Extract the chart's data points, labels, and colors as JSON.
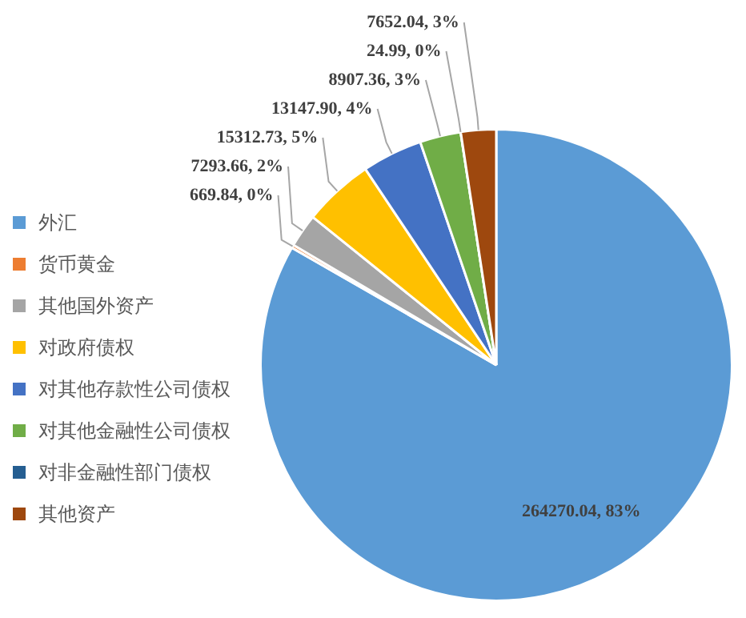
{
  "chart_data": {
    "type": "pie",
    "categories": [
      "外汇",
      "货币黄金",
      "其他国外资产",
      "对政府债权",
      "对其他存款性公司债权",
      "对其他金融性公司债权",
      "对非金融性部门债权",
      "其他资产"
    ],
    "values": [
      264270.04,
      669.84,
      7293.66,
      15312.73,
      13147.9,
      8907.36,
      24.99,
      7652.04
    ],
    "colors": [
      "#5b9bd5",
      "#ed7d31",
      "#a5a5a5",
      "#ffc000",
      "#4472c4",
      "#70ad47",
      "#255e91",
      "#9e480e"
    ],
    "value_labels": [
      "264270.04, 83%",
      "669.84, 0%",
      "7293.66, 2%",
      "15312.73, 5%",
      "13147.90, 4%",
      "8907.36, 3%",
      "24.99, 0%",
      "7652.04, 3%"
    ],
    "legend": "left"
  }
}
